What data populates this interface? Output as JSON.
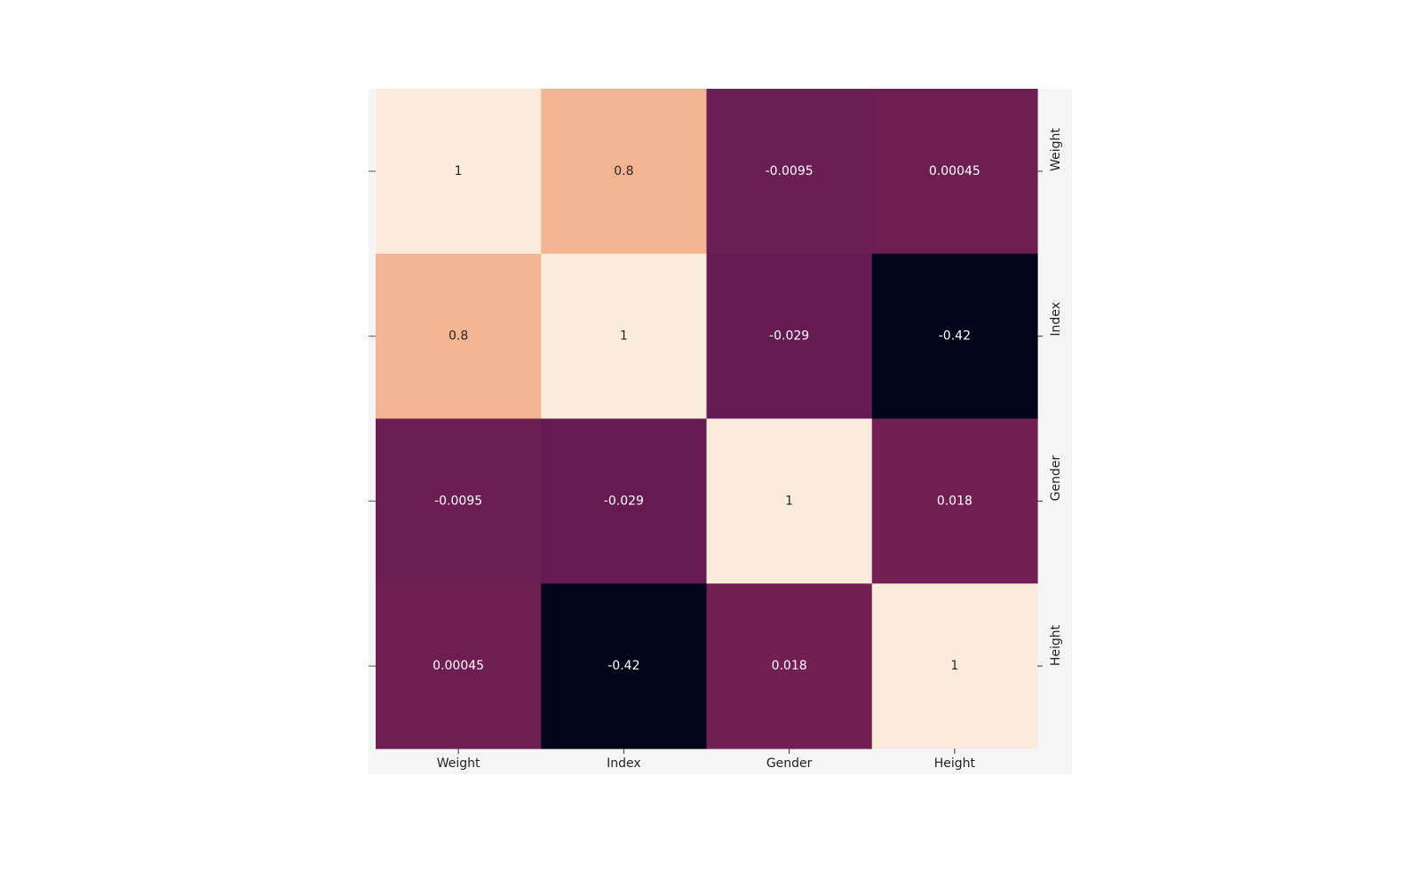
{
  "chart_data": {
    "type": "heatmap",
    "rows": [
      "Weight",
      "Index",
      "Gender",
      "Height"
    ],
    "columns": [
      "Weight",
      "Index",
      "Gender",
      "Height"
    ],
    "values": [
      [
        1,
        0.8,
        -0.0095,
        0.00045
      ],
      [
        0.8,
        1,
        -0.029,
        -0.42
      ],
      [
        -0.0095,
        -0.029,
        1,
        0.018
      ],
      [
        0.00045,
        -0.42,
        0.018,
        1
      ]
    ],
    "value_labels": [
      [
        "1",
        "0.8",
        "-0.0095",
        "0.00045"
      ],
      [
        "0.8",
        "1",
        "-0.029",
        "-0.42"
      ],
      [
        "-0.0095",
        "-0.029",
        "1",
        "0.018"
      ],
      [
        "0.00045",
        "-0.42",
        "0.018",
        "1"
      ]
    ],
    "colormap": "rocket",
    "colorbar": false,
    "y_tick_side": "right",
    "y_tick_rotation": "vertical",
    "title": "",
    "xlabel": "",
    "ylabel": ""
  }
}
